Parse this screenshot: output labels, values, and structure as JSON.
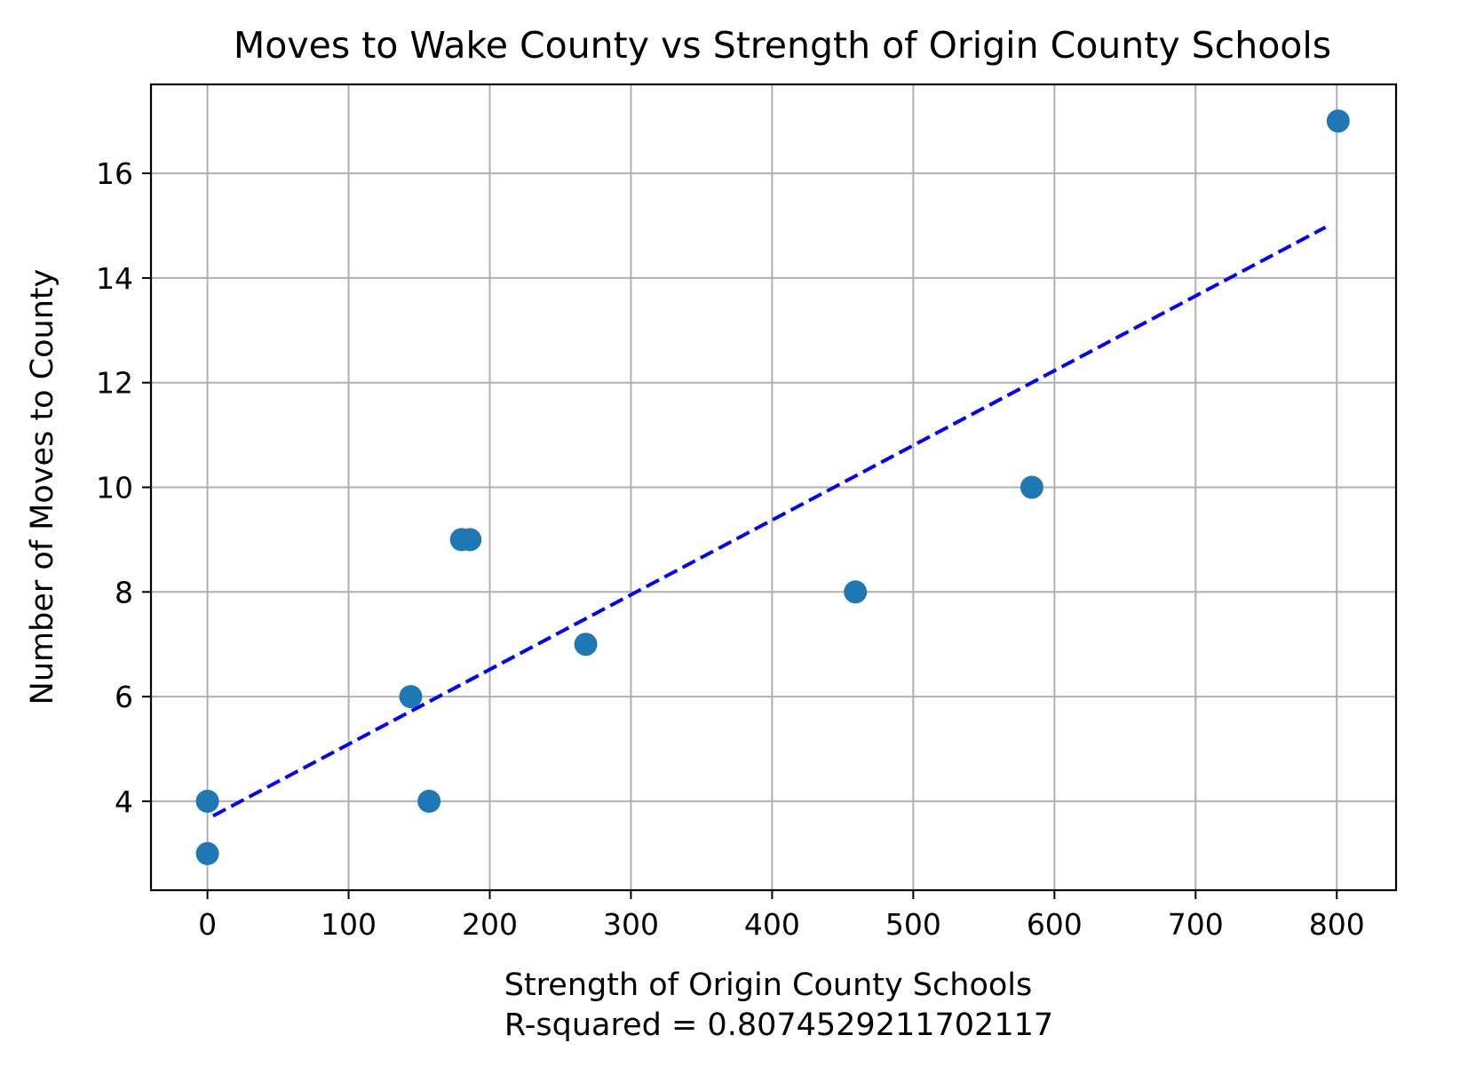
{
  "chart_data": {
    "type": "scatter",
    "title": "Moves to Wake County vs Strength of Origin County Schools",
    "xlabel": "Strength of Origin County Schools",
    "xlabel_sub": "R-squared = 0.8074529211702117",
    "ylabel": "Number of Moves to County",
    "xlim": [
      -40,
      842
    ],
    "ylim": [
      2.3,
      17.7
    ],
    "xticks": [
      0,
      100,
      200,
      300,
      400,
      500,
      600,
      700,
      800
    ],
    "yticks": [
      4,
      6,
      8,
      10,
      12,
      14,
      16
    ],
    "grid": true,
    "points": [
      {
        "x": 0,
        "y": 4
      },
      {
        "x": 0,
        "y": 3
      },
      {
        "x": 144,
        "y": 6
      },
      {
        "x": 157,
        "y": 4
      },
      {
        "x": 180,
        "y": 9
      },
      {
        "x": 186,
        "y": 9
      },
      {
        "x": 268,
        "y": 7
      },
      {
        "x": 459,
        "y": 8
      },
      {
        "x": 584,
        "y": 10
      },
      {
        "x": 801,
        "y": 17
      }
    ],
    "trendline": {
      "x": [
        4,
        792
      ],
      "y": [
        3.72,
        14.97
      ],
      "style": "dashed"
    },
    "colors": {
      "points": "#1f77b4",
      "trendline": "#0000ff",
      "grid": "#b0b0b0"
    }
  }
}
